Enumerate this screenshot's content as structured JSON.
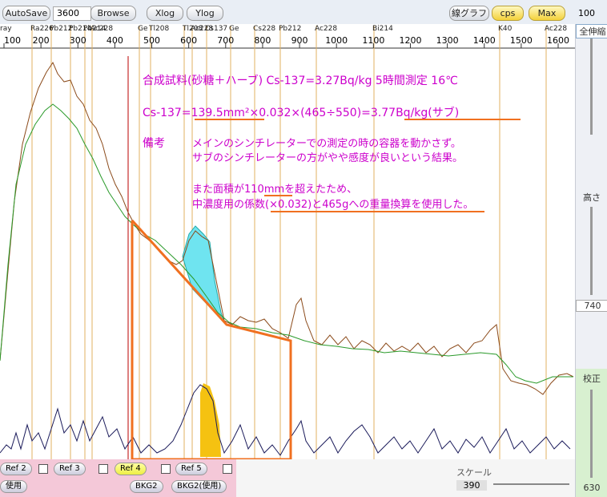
{
  "toolbar": {
    "autosave": "AutoSave",
    "time": "3600",
    "browse": "Browse",
    "xlog": "Xlog",
    "ylog": "Ylog",
    "line_graph": "線グラフ",
    "cps": "cps",
    "max": "Max",
    "right_top": "100"
  },
  "isotopes": [
    "ray",
    "Ra226",
    "Pb212",
    "Pb214",
    "Pb214",
    "Ac228",
    "Ge",
    "Tl208",
    "Tl208",
    "Ac228",
    "Cs137",
    "Ge",
    "Cs228",
    "Pb212",
    "Ac228",
    "Bi214",
    "K40",
    "Ac228"
  ],
  "x_axis": {
    "xlim": [
      100,
      1600
    ],
    "xticks": [
      100,
      200,
      300,
      400,
      500,
      600,
      700,
      800,
      900,
      1000,
      1100,
      1200,
      1300,
      1400,
      1500,
      1600
    ]
  },
  "annotations": {
    "title": "合成試料(砂糖＋ハーブ) Cs-137=3.27Bq/kg 5時間測定 16℃",
    "formula": "Cs-137=139.5mm²×0.032×(465÷550)=3.77Bq/kg(サブ)",
    "note_label": "備考",
    "note1": "メインのシンチレーターでの測定の時の容器を動かさず。",
    "note2": "サブのシンチレーターの方がやや感度が良いという結果。",
    "note3": "また面積が110mmを超えたため、",
    "note4": "中濃度用の係数(×0.032)と465gへの重量換算を使用した。"
  },
  "right_panel": {
    "zoom_all": "全伸縮",
    "height": "高さ",
    "height_value": "740",
    "calib": "校正",
    "calib_value": "630"
  },
  "bottom": {
    "ref2": "Ref 2",
    "ref3": "Ref 3",
    "ref4": "Ref 4",
    "ref5": "Ref 5",
    "use": "使用",
    "bkg2": "BKG2",
    "bkg2_use": "BKG2(使用)",
    "scale": "スケール",
    "scale_value": "390"
  }
}
